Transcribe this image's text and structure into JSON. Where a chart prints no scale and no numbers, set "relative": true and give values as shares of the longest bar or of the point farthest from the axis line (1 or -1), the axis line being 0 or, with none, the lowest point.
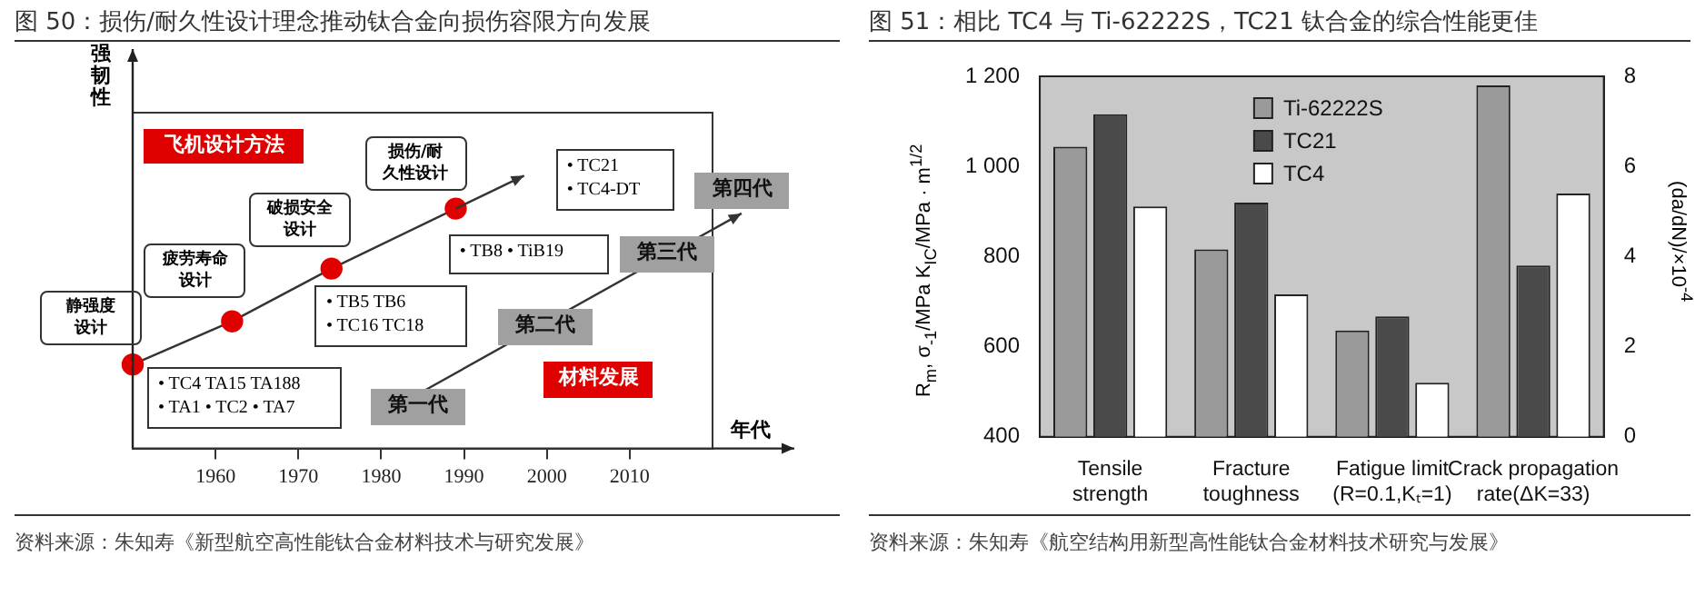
{
  "chart_data": [
    {
      "type": "scatter",
      "title": "图 50：损伤/耐久性设计理念推动钛合金向损伤容限方向发展",
      "xlabel": "年代",
      "ylabel": "强韧性",
      "xlim": [
        1950,
        2020
      ],
      "xticks": [
        1960,
        1970,
        1980,
        1990,
        2000,
        2010
      ],
      "x": [
        1950,
        1962,
        1974,
        1989
      ],
      "relative": true,
      "series": [
        {
          "type": "line",
          "color": "#333333",
          "marker": "none",
          "values": [
            0.35,
            0.53,
            0.75,
            1
          ]
        },
        {
          "type": "scatter",
          "color": "#e00000",
          "marker": "circle",
          "values": [
            0.35,
            0.53,
            0.75,
            1
          ]
        }
      ],
      "annotations": [
        "飞机设计方法",
        "静强度设计",
        "疲劳寿命设计",
        "破损安全设计",
        "损伤/耐久性设计",
        "• TC4 TA15 TA188\n• TA1 • TC2 • TA7",
        "• TB5 TB6\n• TC16 TC18",
        "• TB8 • TiB19",
        "• TC21\n• TC4-DT",
        "第一代",
        "第二代",
        "第三代",
        "第四代",
        "材料发展",
        "资料来源：朱知寿《新型航空高性能钛合金材料技术与研究发展》"
      ]
    },
    {
      "type": "bar",
      "title": "图 51：相比 TC4 与 Ti-62222S，TC21 钛合金的综合性能更佳",
      "ylabel": "R$_{m}$, σ$_{-1}$/MPa   K$_{IC}$/MPa · m$^{1/2}$",
      "y2label": "(da/dN)/×10$^{-4}$",
      "categories": [
        "Tensile strength",
        "Fracture toughness",
        "Fatigue limit (R=0.1,Kₜ=1)",
        "Crack propagation rate(ΔK=33)"
      ],
      "series": [
        {
          "name": "Ti-62222S",
          "color": "#9a9a9a",
          "values": [
            1044,
            816,
            636,
            null
          ]
        },
        {
          "name": "TC21",
          "color": "#4a4a4a",
          "values": [
            1116,
            920,
            667,
            null
          ]
        },
        {
          "name": "TC4",
          "color": "#ffffff",
          "values": [
            911,
            716,
            520,
            null
          ]
        },
        {
          "color": "#9a9a9a",
          "axis": "y2",
          "values": [
            null,
            null,
            null,
            7.8
          ]
        },
        {
          "color": "#4a4a4a",
          "axis": "y2",
          "values": [
            null,
            null,
            null,
            3.8
          ]
        },
        {
          "color": "#ffffff",
          "axis": "y2",
          "values": [
            null,
            null,
            null,
            5.4
          ]
        }
      ],
      "ylim": [
        400,
        1200
      ],
      "yticks": [
        {
          "value": 400,
          "label": "400"
        },
        {
          "value": 600,
          "label": "600"
        },
        {
          "value": 800,
          "label": "800"
        },
        {
          "value": 1000,
          "label": "1 000"
        },
        {
          "value": 1200,
          "label": "1 200"
        }
      ],
      "y2lim": [
        0,
        8
      ],
      "y2ticks": [
        0,
        2,
        4,
        6,
        8
      ],
      "legend": "top",
      "annotations": [
        "资料来源：朱知寿《航空结构用新型高性能钛合金材料技术研究与发展》"
      ]
    }
  ]
}
